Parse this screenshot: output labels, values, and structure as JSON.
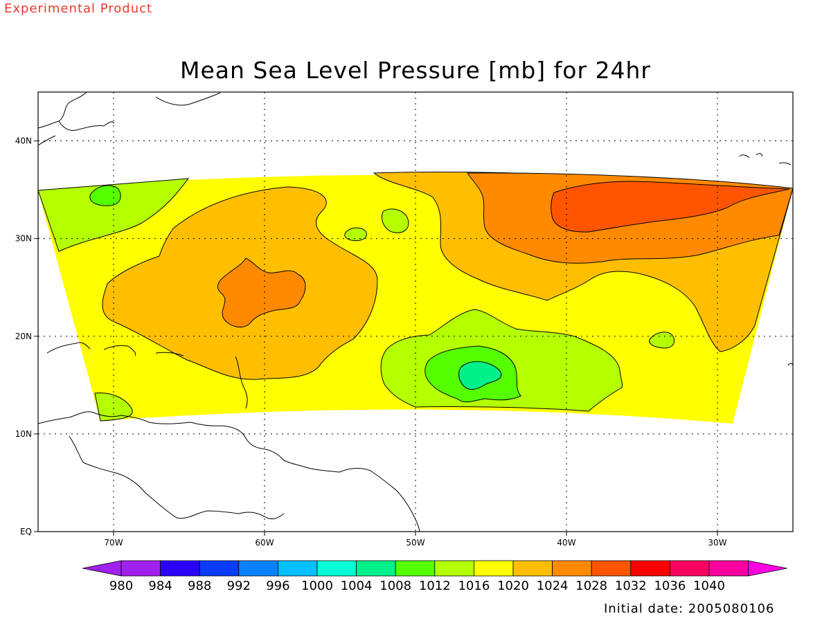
{
  "header": {
    "product_label": "Experimental Product",
    "title": "Mean Sea Level Pressure [mb] for 24hr"
  },
  "footer": {
    "initial_date": "Initial date: 2005080106"
  },
  "map": {
    "lon_range": [
      -75,
      -25
    ],
    "lat_range": [
      0,
      45
    ],
    "lon_ticks": [
      {
        "value": -70,
        "label": "70W"
      },
      {
        "value": -60,
        "label": "60W"
      },
      {
        "value": -50,
        "label": "50W"
      },
      {
        "value": -40,
        "label": "40W"
      },
      {
        "value": -30,
        "label": "30W"
      }
    ],
    "lat_ticks": [
      {
        "value": 0,
        "label": "EQ"
      },
      {
        "value": 10,
        "label": "10N"
      },
      {
        "value": 20,
        "label": "20N"
      },
      {
        "value": 30,
        "label": "30N"
      },
      {
        "value": 40,
        "label": "40N"
      }
    ],
    "grid": "dotted"
  },
  "colorbar": {
    "levels": [
      {
        "label": "980",
        "color": "#a020f0"
      },
      {
        "label": "984",
        "color": "#2a00ff"
      },
      {
        "label": "988",
        "color": "#0a3cff"
      },
      {
        "label": "992",
        "color": "#0a82ff"
      },
      {
        "label": "996",
        "color": "#00bfff"
      },
      {
        "label": "1000",
        "color": "#00ffd5"
      },
      {
        "label": "1004",
        "color": "#00f08a"
      },
      {
        "label": "1008",
        "color": "#55ff00"
      },
      {
        "label": "1012",
        "color": "#b4ff00"
      },
      {
        "label": "1016",
        "color": "#ffff00"
      },
      {
        "label": "1020",
        "color": "#ffbf00"
      },
      {
        "label": "1024",
        "color": "#ff8a00"
      },
      {
        "label": "1028",
        "color": "#ff5500"
      },
      {
        "label": "1032",
        "color": "#ff0000"
      },
      {
        "label": "1036",
        "color": "#ff0060"
      },
      {
        "label": "1040",
        "color": "#ff00a0"
      }
    ],
    "end_low_color": "#a020f0",
    "end_high_color": "#ff00e0"
  }
}
